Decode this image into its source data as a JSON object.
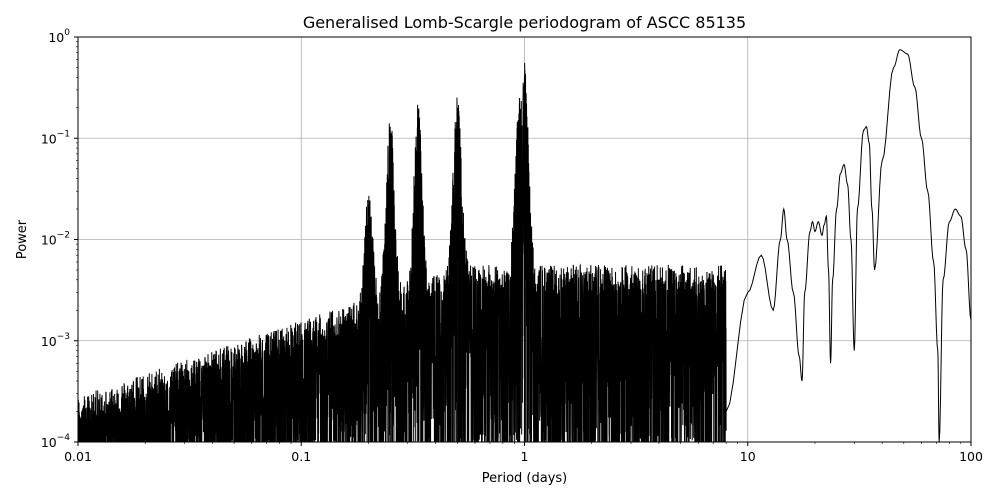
{
  "chart_data": {
    "type": "line",
    "title": "Generalised Lomb-Scargle periodogram of ASCC 85135",
    "xlabel": "Period (days)",
    "ylabel": "Power",
    "xscale": "log",
    "yscale": "log",
    "xlim": [
      0.01,
      100
    ],
    "ylim": [
      0.0001,
      1
    ],
    "grid": true,
    "line_color": "#000000",
    "x_ticks": [
      {
        "value": 0.01,
        "label": "0.01"
      },
      {
        "value": 0.1,
        "label": "0.1"
      },
      {
        "value": 1,
        "label": "1"
      },
      {
        "value": 10,
        "label": "10"
      },
      {
        "value": 100,
        "label": "100"
      }
    ],
    "y_ticks": [
      {
        "value": 0.0001,
        "base": "10",
        "exp": "−4"
      },
      {
        "value": 0.001,
        "base": "10",
        "exp": "−3"
      },
      {
        "value": 0.01,
        "base": "10",
        "exp": "−2"
      },
      {
        "value": 0.1,
        "base": "10",
        "exp": "−1"
      },
      {
        "value": 1,
        "base": "10",
        "exp": "0"
      }
    ],
    "series": [
      {
        "x": [
          8,
          10,
          11.5,
          13,
          14,
          14.5,
          15,
          16,
          17,
          17.5,
          18,
          19,
          19.5,
          20,
          20.7,
          21.5,
          22,
          22.5,
          23,
          23.5,
          24,
          25,
          26,
          27,
          28,
          29,
          30,
          31,
          33,
          34,
          35,
          36,
          37,
          40,
          45,
          48,
          52,
          56,
          60,
          64,
          68,
          71,
          72,
          75,
          80,
          85,
          90,
          95,
          100
        ],
        "y": [
          0.0002,
          0.003,
          0.007,
          0.002,
          0.01,
          0.02,
          0.01,
          0.003,
          0.0007,
          0.0004,
          0.003,
          0.012,
          0.015,
          0.012,
          0.015,
          0.011,
          0.014,
          0.017,
          0.005,
          0.0006,
          0.004,
          0.02,
          0.045,
          0.055,
          0.035,
          0.01,
          0.0008,
          0.02,
          0.12,
          0.13,
          0.09,
          0.02,
          0.005,
          0.06,
          0.5,
          0.75,
          0.68,
          0.32,
          0.1,
          0.03,
          0.006,
          0.0008,
          0.0001,
          0.004,
          0.015,
          0.02,
          0.017,
          0.008,
          0.0016
        ]
      }
    ],
    "peaks": [
      {
        "x": 0.2,
        "y": 0.022
      },
      {
        "x": 0.25,
        "y": 0.13
      },
      {
        "x": 0.333,
        "y": 0.16
      },
      {
        "x": 0.5,
        "y": 0.19
      },
      {
        "x": 0.95,
        "y": 0.25
      },
      {
        "x": 1.0,
        "y": 0.4
      }
    ]
  }
}
